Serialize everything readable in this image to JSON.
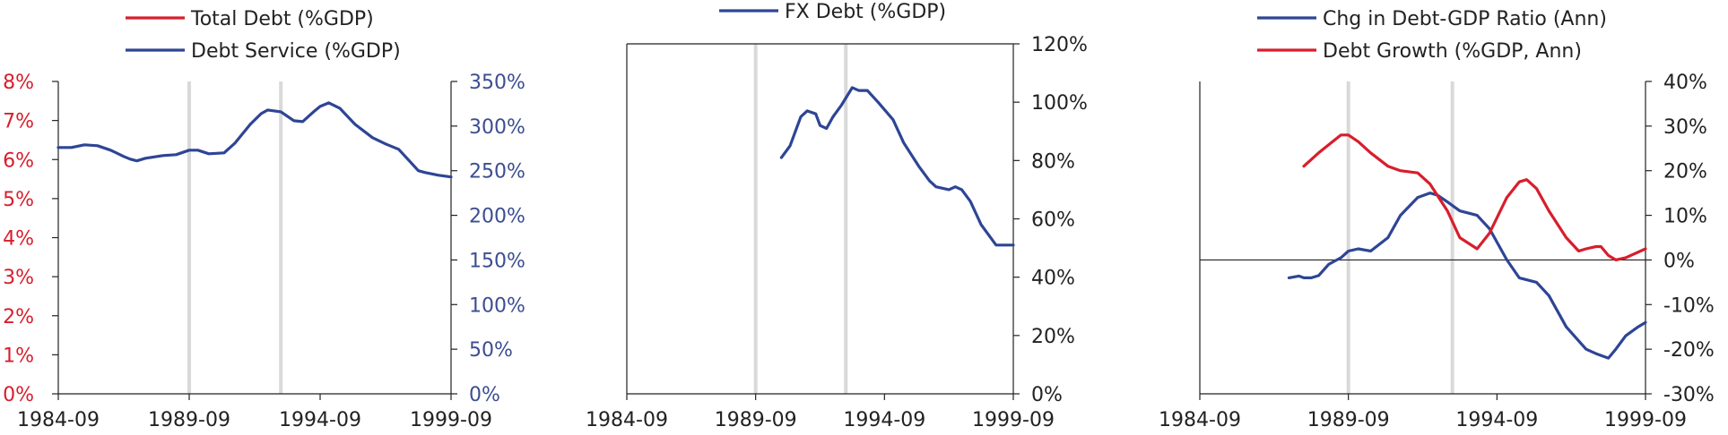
{
  "colors": {
    "red": "#d81e2c",
    "blue": "#2e4595",
    "axis": "#222222",
    "shade": "#d9d9d9",
    "left_axis_red": "#d81e2c",
    "right_axis_blue": "#3b4e91"
  },
  "chart_data": [
    {
      "type": "line",
      "legend": [
        "Total Debt (%GDP)",
        "Debt Service (%GDP)"
      ],
      "x_range": [
        "1984-09",
        "1999-09"
      ],
      "x_ticks": [
        "1984-09",
        "1989-09",
        "1994-09",
        "1999-09"
      ],
      "shaded_dates": [
        "1989-09",
        "1993-03"
      ],
      "y_left": {
        "range": [
          0,
          8
        ],
        "ticks": [
          "0%",
          "1%",
          "2%",
          "3%",
          "4%",
          "5%",
          "6%",
          "7%",
          "8%"
        ]
      },
      "y_right": {
        "range": [
          0,
          350
        ],
        "ticks": [
          "0%",
          "50%",
          "100%",
          "150%",
          "200%",
          "250%",
          "300%",
          "350%"
        ]
      },
      "series": [
        {
          "name": "Total Debt (%GDP)",
          "color": "red",
          "axis": "left",
          "points": []
        },
        {
          "name": "Debt Service (%GDP)",
          "color": "blue",
          "axis": "right",
          "points": [
            [
              "1984-09",
              276
            ],
            [
              "1985-03",
              276
            ],
            [
              "1985-09",
              279
            ],
            [
              "1986-03",
              278
            ],
            [
              "1986-09",
              273
            ],
            [
              "1987-03",
              266
            ],
            [
              "1987-06",
              263
            ],
            [
              "1987-09",
              261
            ],
            [
              "1988-01",
              264
            ],
            [
              "1988-09",
              267
            ],
            [
              "1989-03",
              268
            ],
            [
              "1989-09",
              273
            ],
            [
              "1990-01",
              273
            ],
            [
              "1990-06",
              269
            ],
            [
              "1991-01",
              270
            ],
            [
              "1991-06",
              281
            ],
            [
              "1992-01",
              302
            ],
            [
              "1992-06",
              314
            ],
            [
              "1992-09",
              318
            ],
            [
              "1993-03",
              316
            ],
            [
              "1993-09",
              306
            ],
            [
              "1994-01",
              305
            ],
            [
              "1994-06",
              316
            ],
            [
              "1994-09",
              322
            ],
            [
              "1995-01",
              326
            ],
            [
              "1995-06",
              320
            ],
            [
              "1996-01",
              302
            ],
            [
              "1996-09",
              287
            ],
            [
              "1997-03",
              280
            ],
            [
              "1997-09",
              274
            ],
            [
              "1998-03",
              258
            ],
            [
              "1998-06",
              250
            ],
            [
              "1998-09",
              248
            ],
            [
              "1999-03",
              245
            ],
            [
              "1999-09",
              243
            ]
          ]
        }
      ]
    },
    {
      "type": "line",
      "legend": [
        "FX Debt (%GDP)"
      ],
      "x_range": [
        "1984-09",
        "1999-09"
      ],
      "x_ticks": [
        "1984-09",
        "1989-09",
        "1994-09",
        "1999-09"
      ],
      "shaded_dates": [
        "1989-09",
        "1993-03"
      ],
      "y_right": {
        "range": [
          0,
          120
        ],
        "ticks": [
          "0%",
          "20%",
          "40%",
          "60%",
          "80%",
          "100%",
          "120%"
        ]
      },
      "series": [
        {
          "name": "FX Debt (%GDP)",
          "color": "blue",
          "axis": "right",
          "points": [
            [
              "1990-09",
              81
            ],
            [
              "1991-01",
              85
            ],
            [
              "1991-06",
              95
            ],
            [
              "1991-09",
              97
            ],
            [
              "1992-01",
              96
            ],
            [
              "1992-03",
              92
            ],
            [
              "1992-06",
              91
            ],
            [
              "1992-09",
              95
            ],
            [
              "1993-01",
              99
            ],
            [
              "1993-06",
              105
            ],
            [
              "1993-09",
              104
            ],
            [
              "1994-01",
              104
            ],
            [
              "1994-06",
              100
            ],
            [
              "1995-01",
              94
            ],
            [
              "1995-06",
              86
            ],
            [
              "1996-01",
              78
            ],
            [
              "1996-06",
              73
            ],
            [
              "1996-09",
              71
            ],
            [
              "1997-03",
              70
            ],
            [
              "1997-06",
              71
            ],
            [
              "1997-09",
              70
            ],
            [
              "1998-01",
              66
            ],
            [
              "1998-06",
              58
            ],
            [
              "1999-01",
              51
            ],
            [
              "1999-09",
              51
            ]
          ]
        }
      ]
    },
    {
      "type": "line",
      "legend": [
        "Chg in Debt-GDP Ratio (Ann)",
        "Debt Growth (%GDP, Ann)"
      ],
      "x_range": [
        "1984-09",
        "1999-09"
      ],
      "x_ticks": [
        "1984-09",
        "1989-09",
        "1994-09",
        "1999-09"
      ],
      "shaded_dates": [
        "1989-09",
        "1993-03"
      ],
      "y_right": {
        "range": [
          -30,
          40
        ],
        "ticks": [
          "40%",
          "30%",
          "20%",
          "10%",
          "0%",
          "-10%",
          "-20%",
          "-30%"
        ]
      },
      "series": [
        {
          "name": "Chg in Debt-GDP Ratio (Ann)",
          "color": "blue",
          "axis": "right",
          "points": [
            [
              "1987-09",
              -4
            ],
            [
              "1988-01",
              -3.6
            ],
            [
              "1988-03",
              -4
            ],
            [
              "1988-06",
              -4
            ],
            [
              "1988-09",
              -3.5
            ],
            [
              "1989-01",
              -1
            ],
            [
              "1989-06",
              0.5
            ],
            [
              "1989-09",
              2
            ],
            [
              "1990-01",
              2.5
            ],
            [
              "1990-06",
              2
            ],
            [
              "1991-01",
              5
            ],
            [
              "1991-06",
              10
            ],
            [
              "1992-01",
              14
            ],
            [
              "1992-06",
              15
            ],
            [
              "1992-09",
              14.5
            ],
            [
              "1993-01",
              13
            ],
            [
              "1993-06",
              11
            ],
            [
              "1994-01",
              10
            ],
            [
              "1994-06",
              7
            ],
            [
              "1995-01",
              0
            ],
            [
              "1995-06",
              -4
            ],
            [
              "1996-01",
              -5
            ],
            [
              "1996-06",
              -8
            ],
            [
              "1997-01",
              -15
            ],
            [
              "1997-09",
              -20
            ],
            [
              "1998-01",
              -21
            ],
            [
              "1998-06",
              -22
            ],
            [
              "1998-09",
              -20
            ],
            [
              "1999-01",
              -17
            ],
            [
              "1999-06",
              -15
            ],
            [
              "1999-09",
              -14
            ]
          ]
        },
        {
          "name": "Debt Growth (%GDP, Ann)",
          "color": "red",
          "axis": "right",
          "points": [
            [
              "1988-03",
              21
            ],
            [
              "1988-09",
              24
            ],
            [
              "1989-06",
              28
            ],
            [
              "1989-09",
              28
            ],
            [
              "1990-01",
              26.5
            ],
            [
              "1990-06",
              24
            ],
            [
              "1991-01",
              21
            ],
            [
              "1991-06",
              20
            ],
            [
              "1992-01",
              19.5
            ],
            [
              "1992-06",
              17
            ],
            [
              "1993-01",
              11
            ],
            [
              "1993-06",
              5
            ],
            [
              "1994-01",
              2.5
            ],
            [
              "1994-06",
              6
            ],
            [
              "1995-01",
              14
            ],
            [
              "1995-06",
              17.5
            ],
            [
              "1995-09",
              18
            ],
            [
              "1996-01",
              16
            ],
            [
              "1996-06",
              11
            ],
            [
              "1997-01",
              5
            ],
            [
              "1997-06",
              2
            ],
            [
              "1997-09",
              2.5
            ],
            [
              "1998-01",
              3
            ],
            [
              "1998-03",
              3
            ],
            [
              "1998-06",
              1
            ],
            [
              "1998-09",
              0
            ],
            [
              "1999-01",
              0.5
            ],
            [
              "1999-09",
              2.5
            ]
          ]
        }
      ]
    }
  ]
}
